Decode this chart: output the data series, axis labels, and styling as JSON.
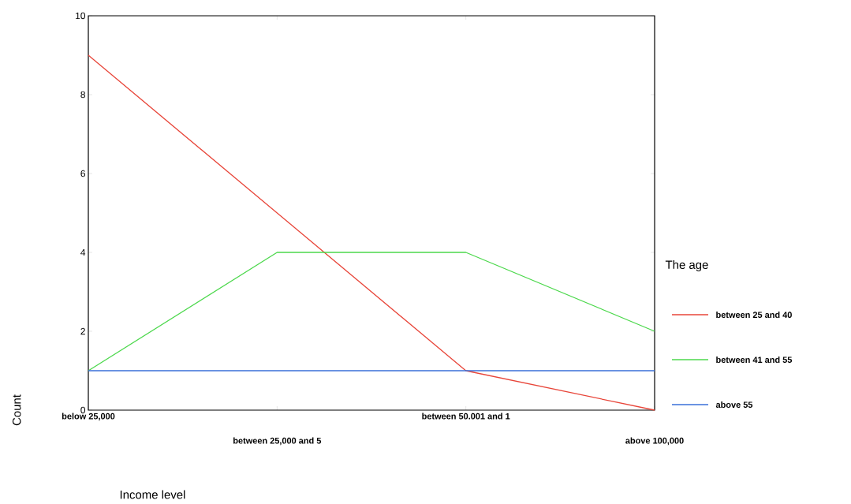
{
  "chart_data": {
    "type": "line",
    "xlabel": "Income level",
    "ylabel": "Count",
    "legend_title": "The age",
    "categories": [
      "below 25,000",
      "between 25,000 and 5",
      "between 50.001 and 1",
      "above 100,000"
    ],
    "series": [
      {
        "name": "between 25 and 40",
        "color": "#e8463a",
        "values": [
          9,
          5,
          1,
          0
        ]
      },
      {
        "name": "between 41 and 55",
        "color": "#4cd84c",
        "values": [
          1,
          4,
          4,
          2
        ]
      },
      {
        "name": "above 55",
        "color": "#3a6fd8",
        "values": [
          1,
          1,
          1,
          1
        ]
      }
    ],
    "ylim": [
      0,
      10
    ],
    "yticks": [
      0,
      2,
      4,
      6,
      8,
      10
    ],
    "grid": false,
    "legend": "right",
    "marker": "none",
    "line_style": "solid"
  }
}
